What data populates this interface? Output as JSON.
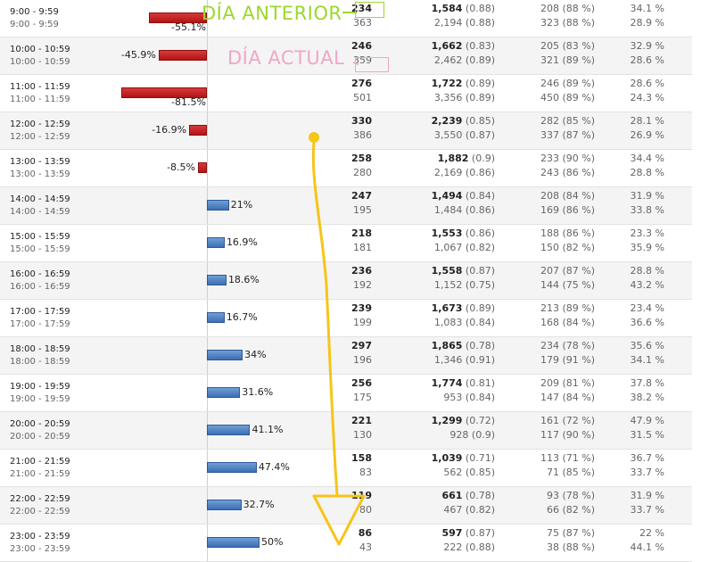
{
  "annotations": {
    "prev_day_label": "DÍA ANTERIOR",
    "current_day_label": "DÍA ACTUAL",
    "prev_color": "#9bd82d",
    "current_color": "#f0a6c8",
    "scribble_color": "#f5c518"
  },
  "colors": {
    "negative_bar": "#c62020",
    "positive_bar": "#4a7fc0"
  },
  "rows": [
    {
      "time1": "9:00 - 9:59",
      "time2": "9:00 - 9:59",
      "change": "-55.1%",
      "change_value": -55.1,
      "a1": "234",
      "a2": "363",
      "b1": "1,584",
      "b1p": " (0.88)",
      "b2": "2,194",
      "b2p": " (0.88)",
      "c1": "208 (88 %)",
      "c2": "323 (88 %)",
      "d1": "34.1 %",
      "d2": "28.9 %"
    },
    {
      "time1": "10:00 - 10:59",
      "time2": "10:00 - 10:59",
      "change": "-45.9%",
      "change_value": -45.9,
      "a1": "246",
      "a2": "359",
      "b1": "1,662",
      "b1p": " (0.83)",
      "b2": "2,462",
      "b2p": " (0.89)",
      "c1": "205 (83 %)",
      "c2": "321 (89 %)",
      "d1": "32.9 %",
      "d2": "28.6 %"
    },
    {
      "time1": "11:00 - 11:59",
      "time2": "11:00 - 11:59",
      "change": "-81.5%",
      "change_value": -81.5,
      "a1": "276",
      "a2": "501",
      "b1": "1,722",
      "b1p": " (0.89)",
      "b2": "3,356",
      "b2p": " (0.89)",
      "c1": "246 (89 %)",
      "c2": "450 (89 %)",
      "d1": "28.6 %",
      "d2": "24.3 %"
    },
    {
      "time1": "12:00 - 12:59",
      "time2": "12:00 - 12:59",
      "change": "-16.9%",
      "change_value": -16.9,
      "a1": "330",
      "a2": "386",
      "b1": "2,239",
      "b1p": " (0.85)",
      "b2": "3,550",
      "b2p": " (0.87)",
      "c1": "282 (85 %)",
      "c2": "337 (87 %)",
      "d1": "28.1 %",
      "d2": "26.9 %"
    },
    {
      "time1": "13:00 - 13:59",
      "time2": "13:00 - 13:59",
      "change": "-8.5%",
      "change_value": -8.5,
      "a1": "258",
      "a2": "280",
      "b1": "1,882",
      "b1p": " (0.9)",
      "b2": "2,169",
      "b2p": " (0.86)",
      "c1": "233 (90 %)",
      "c2": "243 (86 %)",
      "d1": "34.4 %",
      "d2": "28.8 %"
    },
    {
      "time1": "14:00 - 14:59",
      "time2": "14:00 - 14:59",
      "change": "21%",
      "change_value": 21,
      "a1": "247",
      "a2": "195",
      "b1": "1,494",
      "b1p": " (0.84)",
      "b2": "1,484",
      "b2p": " (0.86)",
      "c1": "208 (84 %)",
      "c2": "169 (86 %)",
      "d1": "31.9 %",
      "d2": "33.8 %"
    },
    {
      "time1": "15:00 - 15:59",
      "time2": "15:00 - 15:59",
      "change": "16.9%",
      "change_value": 16.9,
      "a1": "218",
      "a2": "181",
      "b1": "1,553",
      "b1p": " (0.86)",
      "b2": "1,067",
      "b2p": " (0.82)",
      "c1": "188 (86 %)",
      "c2": "150 (82 %)",
      "d1": "23.3 %",
      "d2": "35.9 %"
    },
    {
      "time1": "16:00 - 16:59",
      "time2": "16:00 - 16:59",
      "change": "18.6%",
      "change_value": 18.6,
      "a1": "236",
      "a2": "192",
      "b1": "1,558",
      "b1p": " (0.87)",
      "b2": "1,152",
      "b2p": " (0.75)",
      "c1": "207 (87 %)",
      "c2": "144 (75 %)",
      "d1": "28.8 %",
      "d2": "43.2 %"
    },
    {
      "time1": "17:00 - 17:59",
      "time2": "17:00 - 17:59",
      "change": "16.7%",
      "change_value": 16.7,
      "a1": "239",
      "a2": "199",
      "b1": "1,673",
      "b1p": " (0.89)",
      "b2": "1,083",
      "b2p": " (0.84)",
      "c1": "213 (89 %)",
      "c2": "168 (84 %)",
      "d1": "23.4 %",
      "d2": "36.6 %"
    },
    {
      "time1": "18:00 - 18:59",
      "time2": "18:00 - 18:59",
      "change": "34%",
      "change_value": 34,
      "a1": "297",
      "a2": "196",
      "b1": "1,865",
      "b1p": " (0.78)",
      "b2": "1,346",
      "b2p": " (0.91)",
      "c1": "234 (78 %)",
      "c2": "179 (91 %)",
      "d1": "35.6 %",
      "d2": "34.1 %"
    },
    {
      "time1": "19:00 - 19:59",
      "time2": "19:00 - 19:59",
      "change": "31.6%",
      "change_value": 31.6,
      "a1": "256",
      "a2": "175",
      "b1": "1,774",
      "b1p": " (0.81)",
      "b2": "953",
      "b2p": " (0.84)",
      "c1": "209 (81 %)",
      "c2": "147 (84 %)",
      "d1": "37.8 %",
      "d2": "38.2 %"
    },
    {
      "time1": "20:00 - 20:59",
      "time2": "20:00 - 20:59",
      "change": "41.1%",
      "change_value": 41.1,
      "a1": "221",
      "a2": "130",
      "b1": "1,299",
      "b1p": " (0.72)",
      "b2": "928",
      "b2p": " (0.9)",
      "c1": "161 (72 %)",
      "c2": "117 (90 %)",
      "d1": "47.9 %",
      "d2": "31.5 %"
    },
    {
      "time1": "21:00 - 21:59",
      "time2": "21:00 - 21:59",
      "change": "47.4%",
      "change_value": 47.4,
      "a1": "158",
      "a2": "83",
      "b1": "1,039",
      "b1p": " (0.71)",
      "b2": "562",
      "b2p": " (0.85)",
      "c1": "113 (71 %)",
      "c2": "71 (85 %)",
      "d1": "36.7 %",
      "d2": "33.7 %"
    },
    {
      "time1": "22:00 - 22:59",
      "time2": "22:00 - 22:59",
      "change": "32.7%",
      "change_value": 32.7,
      "a1": "119",
      "a2": "80",
      "b1": "661",
      "b1p": " (0.78)",
      "b2": "467",
      "b2p": " (0.82)",
      "c1": "93 (78 %)",
      "c2": "66 (82 %)",
      "d1": "31.9 %",
      "d2": "33.7 %"
    },
    {
      "time1": "23:00 - 23:59",
      "time2": "23:00 - 23:59",
      "change": "50%",
      "change_value": 50,
      "a1": "86",
      "a2": "43",
      "b1": "597",
      "b1p": " (0.87)",
      "b2": "222",
      "b2p": " (0.88)",
      "c1": "75 (87 %)",
      "c2": "38 (88 %)",
      "d1": "22 %",
      "d2": "44.1 %"
    }
  ]
}
